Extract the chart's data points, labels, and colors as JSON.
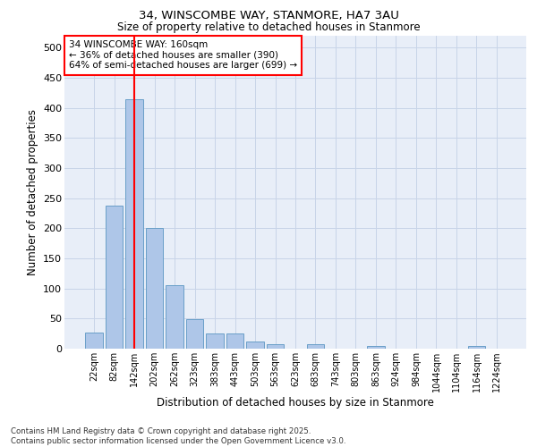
{
  "title_line1": "34, WINSCOMBE WAY, STANMORE, HA7 3AU",
  "title_line2": "Size of property relative to detached houses in Stanmore",
  "xlabel": "Distribution of detached houses by size in Stanmore",
  "ylabel": "Number of detached properties",
  "bar_labels": [
    "22sqm",
    "82sqm",
    "142sqm",
    "202sqm",
    "262sqm",
    "323sqm",
    "383sqm",
    "443sqm",
    "503sqm",
    "563sqm",
    "623sqm",
    "683sqm",
    "743sqm",
    "803sqm",
    "863sqm",
    "924sqm",
    "984sqm",
    "1044sqm",
    "1104sqm",
    "1164sqm",
    "1224sqm"
  ],
  "bar_values": [
    27,
    237,
    415,
    200,
    105,
    49,
    25,
    25,
    12,
    8,
    0,
    7,
    0,
    0,
    5,
    0,
    0,
    0,
    0,
    5,
    0
  ],
  "bar_color": "#aec6e8",
  "bar_edge_color": "#6a9fc8",
  "grid_color": "#c8d4e8",
  "background_color": "#e8eef8",
  "red_line_x": 2,
  "annotation_text_line1": "34 WINSCOMBE WAY: 160sqm",
  "annotation_text_line2": "← 36% of detached houses are smaller (390)",
  "annotation_text_line3": "64% of semi-detached houses are larger (699) →",
  "ylim": [
    0,
    520
  ],
  "yticks": [
    0,
    50,
    100,
    150,
    200,
    250,
    300,
    350,
    400,
    450,
    500
  ],
  "footer_line1": "Contains HM Land Registry data © Crown copyright and database right 2025.",
  "footer_line2": "Contains public sector information licensed under the Open Government Licence v3.0."
}
